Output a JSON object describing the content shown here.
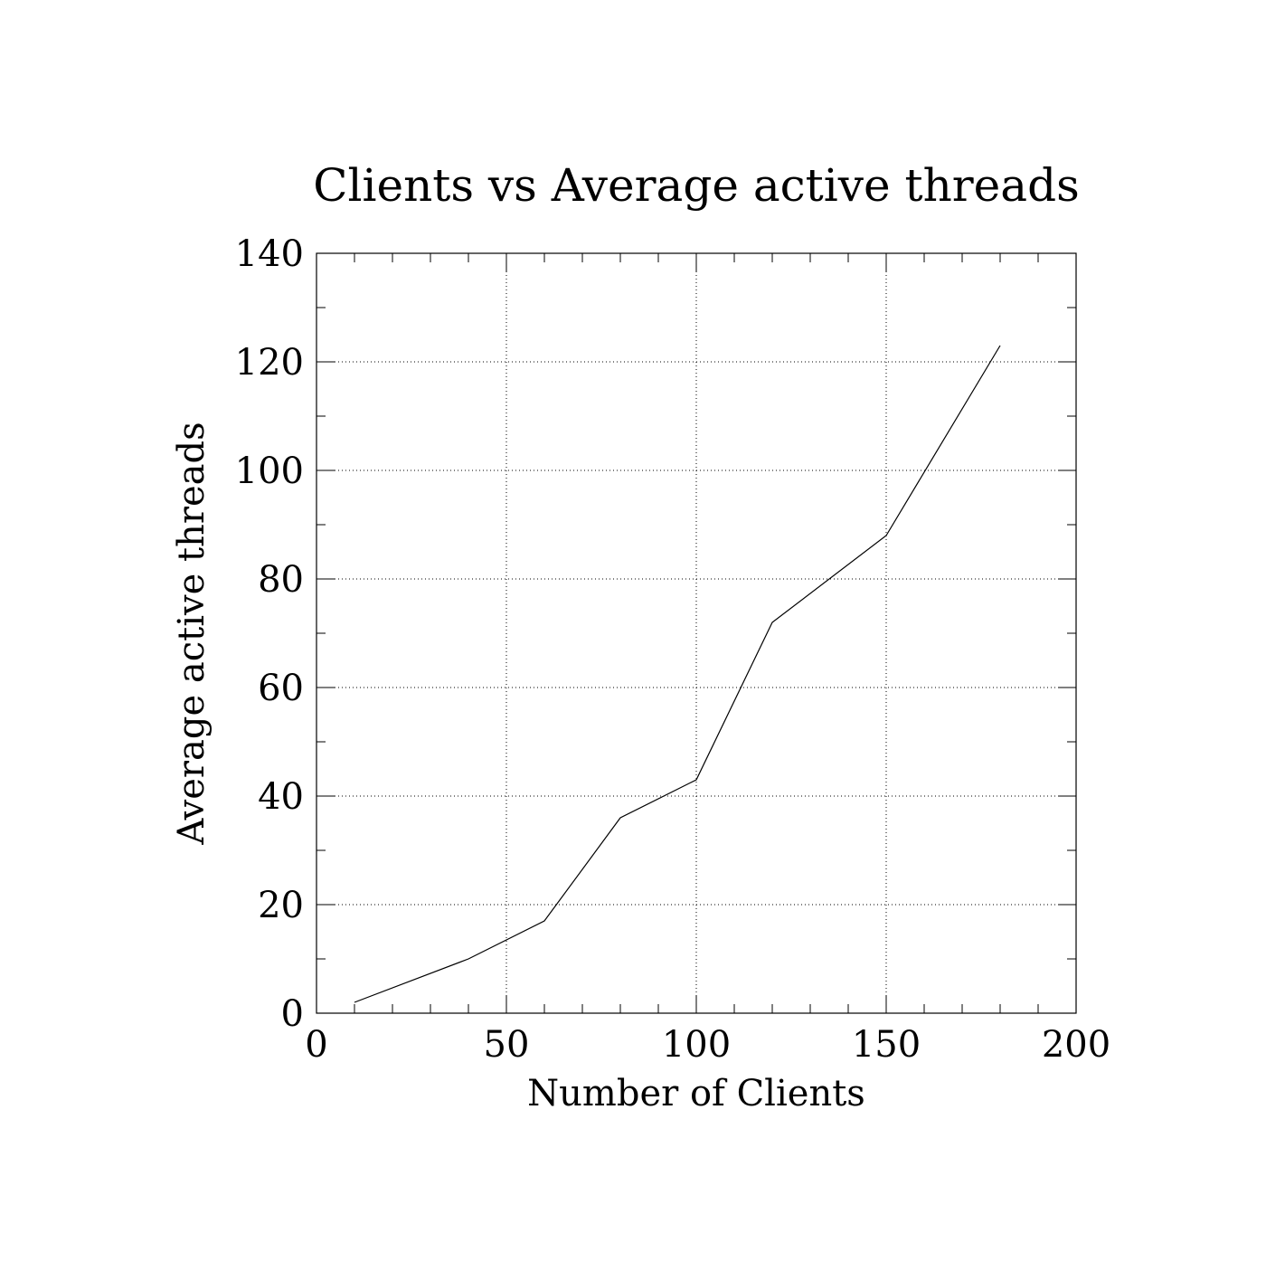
{
  "chart_data": {
    "type": "line",
    "title": "Clients vs Average active threads",
    "xlabel": "Number of Clients",
    "ylabel": "Average active threads",
    "xlim": [
      0,
      200
    ],
    "ylim": [
      0,
      140
    ],
    "xticks": [
      0,
      50,
      100,
      150,
      200
    ],
    "yticks": [
      0,
      20,
      40,
      60,
      80,
      100,
      120,
      140
    ],
    "x_minor_step": 10,
    "y_minor_step": 10,
    "grid": true,
    "series": [
      {
        "x": [
          10,
          40,
          60,
          80,
          100,
          120,
          150,
          180
        ],
        "y": [
          2,
          10,
          17,
          36,
          43,
          72,
          88,
          123
        ]
      }
    ]
  }
}
